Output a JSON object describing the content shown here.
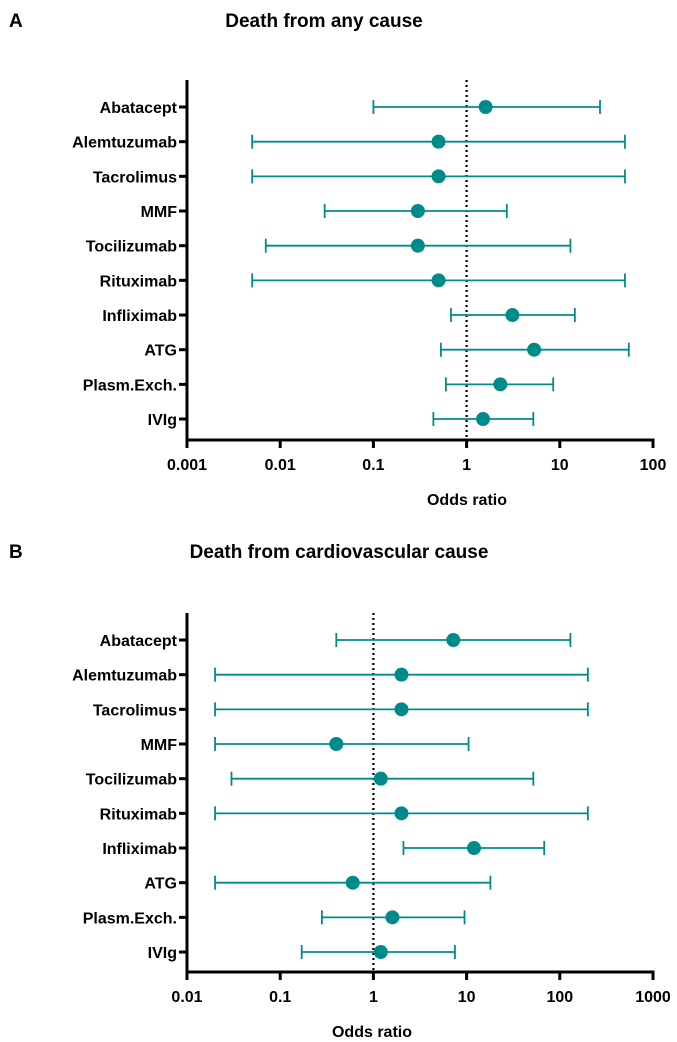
{
  "colors": {
    "marker": "#008b8b",
    "axis": "#000000",
    "reference_line": "#000000"
  },
  "chart_data": [
    {
      "panel": "A",
      "type": "scatter",
      "subtype": "forest plot",
      "title": "Death from any cause",
      "xlabel": "Odds ratio",
      "ylabel": "",
      "xscale": "log",
      "xlim": [
        0.001,
        100
      ],
      "xticks": [
        0.001,
        0.01,
        0.1,
        1,
        10,
        100
      ],
      "xtick_labels": [
        "0.001",
        "0.01",
        "0.1",
        "1",
        "10",
        "100"
      ],
      "reference_line": 1,
      "grid": false,
      "categories": [
        "Abatacept",
        "Alemtuzumab",
        "Tacrolimus",
        "MMF",
        "Tocilizumab",
        "Rituximab",
        "Infliximab",
        "ATG",
        "Plasm.Exch.",
        "IVIg"
      ],
      "estimate": [
        1.6,
        0.5,
        0.5,
        0.3,
        0.3,
        0.5,
        3.1,
        5.3,
        2.3,
        1.5
      ],
      "ci_lower": [
        0.1,
        0.005,
        0.005,
        0.03,
        0.007,
        0.005,
        0.68,
        0.53,
        0.6,
        0.44
      ],
      "ci_upper": [
        27,
        50,
        50,
        2.7,
        13,
        50,
        14.5,
        55,
        8.5,
        5.2
      ]
    },
    {
      "panel": "B",
      "type": "scatter",
      "subtype": "forest plot",
      "title": "Death from cardiovascular cause",
      "xlabel": "Odds ratio",
      "ylabel": "",
      "xscale": "log",
      "xlim": [
        0.01,
        1000
      ],
      "xticks": [
        0.01,
        0.1,
        1,
        10,
        100,
        1000
      ],
      "xtick_labels": [
        "0.01",
        "0.1",
        "1",
        "10",
        "100",
        "1000"
      ],
      "reference_line": 1,
      "grid": false,
      "categories": [
        "Abatacept",
        "Alemtuzumab",
        "Tacrolimus",
        "MMF",
        "Tocilizumab",
        "Rituximab",
        "Infliximab",
        "ATG",
        "Plasm.Exch.",
        "IVIg"
      ],
      "estimate": [
        7.2,
        2.0,
        2.0,
        0.4,
        1.2,
        2.0,
        12,
        0.6,
        1.6,
        1.2
      ],
      "ci_lower": [
        0.4,
        0.02,
        0.02,
        0.02,
        0.03,
        0.02,
        2.1,
        0.02,
        0.28,
        0.17
      ],
      "ci_upper": [
        130,
        200,
        200,
        10.5,
        52,
        200,
        68,
        18,
        9.5,
        7.5
      ]
    }
  ]
}
